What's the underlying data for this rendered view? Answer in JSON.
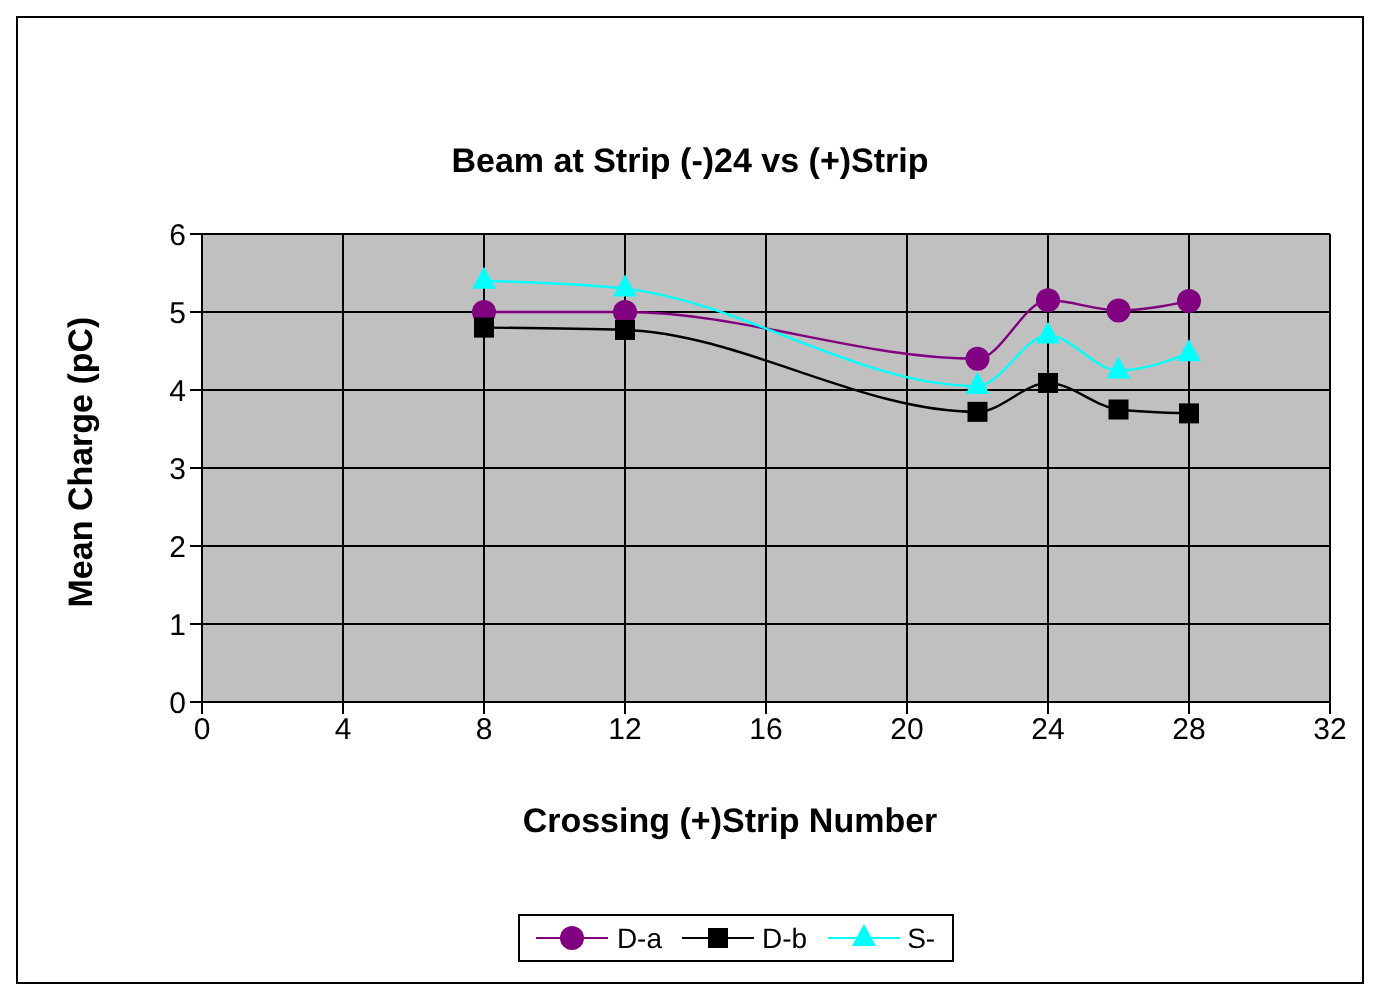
{
  "chart_data": {
    "type": "line",
    "title": "Beam at Strip (-)24 vs (+)Strip",
    "xlabel": "Crossing (+)Strip Number",
    "ylabel": "Mean Charge (pC)",
    "x": [
      8,
      12,
      22,
      24,
      26,
      28
    ],
    "series": [
      {
        "name": "D-a",
        "color": "#800080",
        "marker": "circle",
        "values": [
          5.0,
          5.0,
          4.4,
          5.15,
          5.02,
          5.14
        ]
      },
      {
        "name": "D-b",
        "color": "#000000",
        "marker": "square",
        "values": [
          4.8,
          4.77,
          3.72,
          4.09,
          3.75,
          3.7
        ]
      },
      {
        "name": "S-",
        "color": "#00ffff",
        "marker": "triangle",
        "values": [
          5.4,
          5.3,
          4.05,
          4.7,
          4.25,
          4.47
        ]
      }
    ],
    "xlim": [
      0,
      32
    ],
    "xticks": [
      0,
      4,
      8,
      12,
      16,
      20,
      24,
      28,
      32
    ],
    "ylim": [
      0,
      6
    ],
    "yticks": [
      0,
      1,
      2,
      3,
      4,
      5,
      6
    ],
    "grid": true,
    "legend": "bottom"
  }
}
